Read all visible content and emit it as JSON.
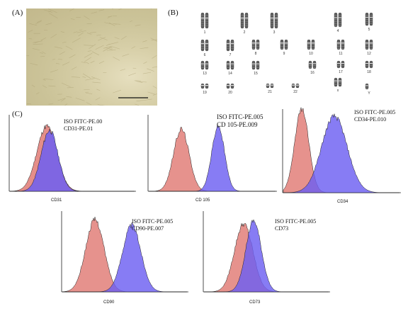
{
  "panel_a": {
    "label": "(A)"
  },
  "panel_b": {
    "label": "(B)",
    "chromosomes": [
      "1",
      "2",
      "3",
      "4",
      "5",
      "6",
      "7",
      "8",
      "9",
      "10",
      "11",
      "12",
      "13",
      "14",
      "15",
      "16",
      "17",
      "18",
      "19",
      "20",
      "21",
      "22",
      "x",
      "Y"
    ]
  },
  "panel_c": {
    "label": "(C)"
  },
  "histograms": [
    {
      "legend1": "ISO FITC-PE.00",
      "legend2": "CD31-PE.01",
      "xlabel": "CD31",
      "overlap": true
    },
    {
      "legend1": "ISO FITC-PE.005",
      "legend2": "CD 105-PE.009",
      "xlabel": "CD 105",
      "overlap": false
    },
    {
      "legend1": "ISO FITC-PE.005",
      "legend2": "CD34-PE.010",
      "xlabel": "CD34",
      "overlap": false
    },
    {
      "legend1": "ISO FITC-PE.005",
      "legend2": "CD90-PE.007",
      "xlabel": "CD90",
      "overlap": false
    },
    {
      "legend1": "ISO FITC-PE.005",
      "legend2": "CD73",
      "xlabel": "CD73",
      "overlap": false
    }
  ],
  "colors": {
    "isotype": "#e07a74",
    "marker": "#6d5ff2",
    "overlap": "#6a2bb8"
  }
}
